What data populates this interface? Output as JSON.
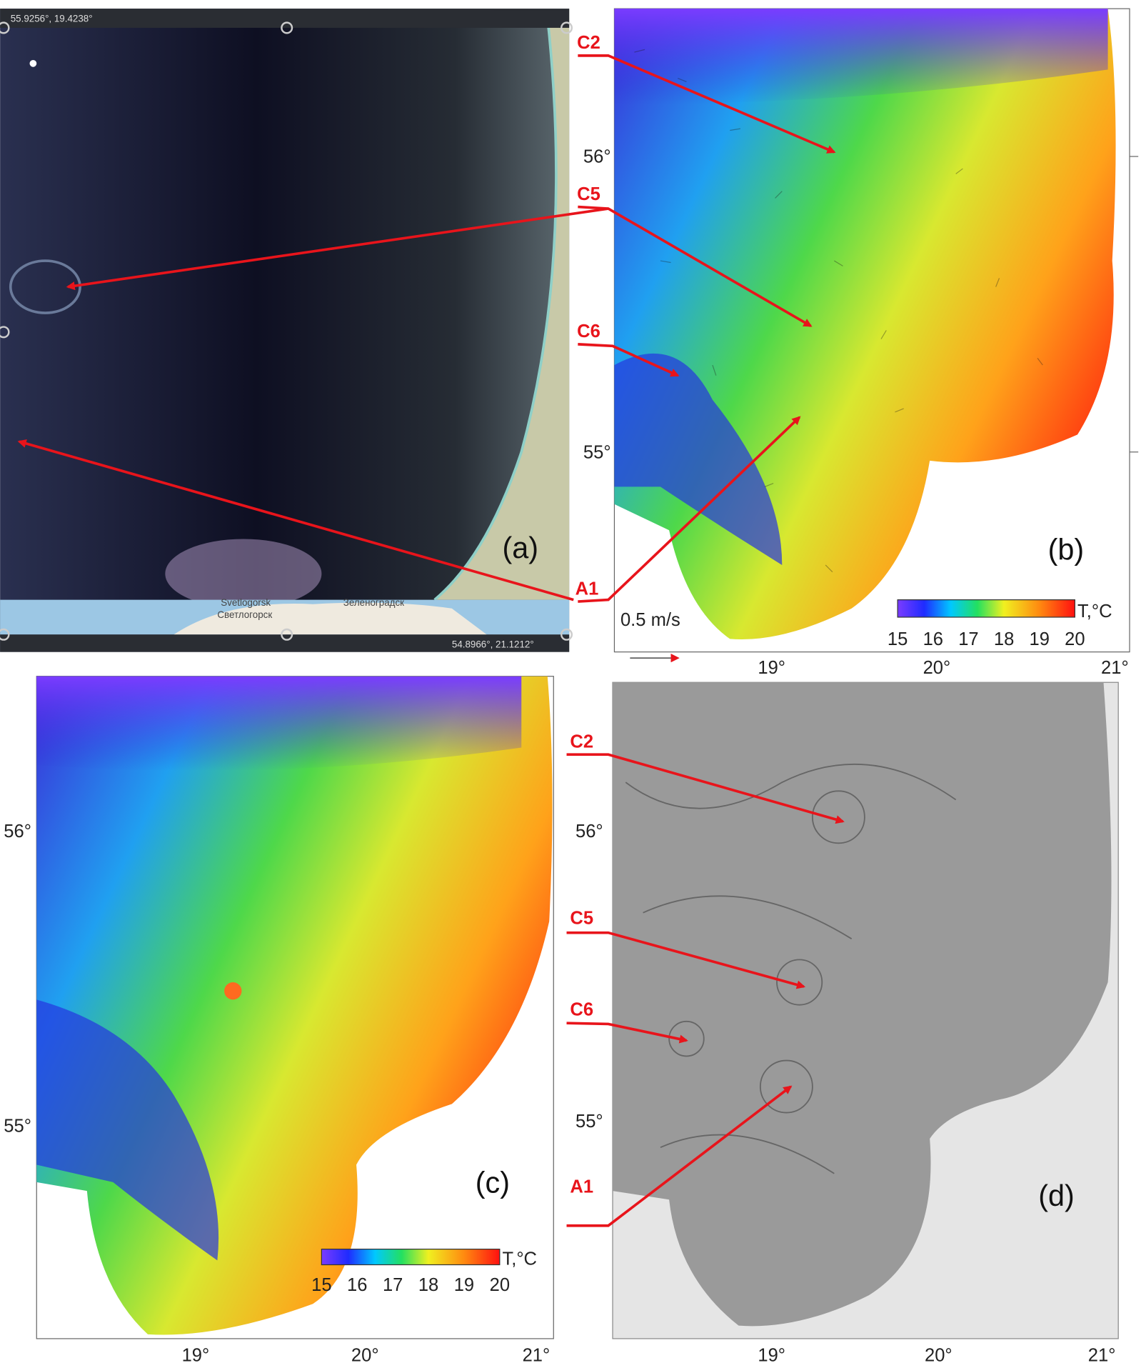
{
  "panels": [
    {
      "label": "(a)",
      "corner_top_left": "55.9256°,  19.4238°",
      "corner_bottom_right": "54.8966°,  21.1212°",
      "places": [
        "Svetlogorsk",
        "Светлогорск",
        "Зеленоградск"
      ]
    },
    {
      "label": "(b)",
      "scale_label": "0.5 m/s",
      "lat_ticks": [
        "56°",
        "55°"
      ],
      "lon_ticks": [
        "19°",
        "20°",
        "21°"
      ],
      "colorbar": {
        "title": "T,°C",
        "ticks": [
          15,
          16,
          17,
          18,
          19,
          20
        ]
      }
    },
    {
      "label": "(c)",
      "lat_ticks": [
        "56°",
        "55°"
      ],
      "lon_ticks": [
        "19°",
        "20°",
        "21°"
      ],
      "colorbar": {
        "title": "T,°C",
        "ticks": [
          15,
          16,
          17,
          18,
          19,
          20
        ]
      }
    },
    {
      "label": "(d)",
      "lat_ticks": [
        "56°",
        "55°"
      ],
      "lon_ticks": [
        "19°",
        "20°",
        "21°"
      ]
    }
  ],
  "eddy_labels": [
    "C2",
    "C5",
    "C6",
    "A1"
  ]
}
